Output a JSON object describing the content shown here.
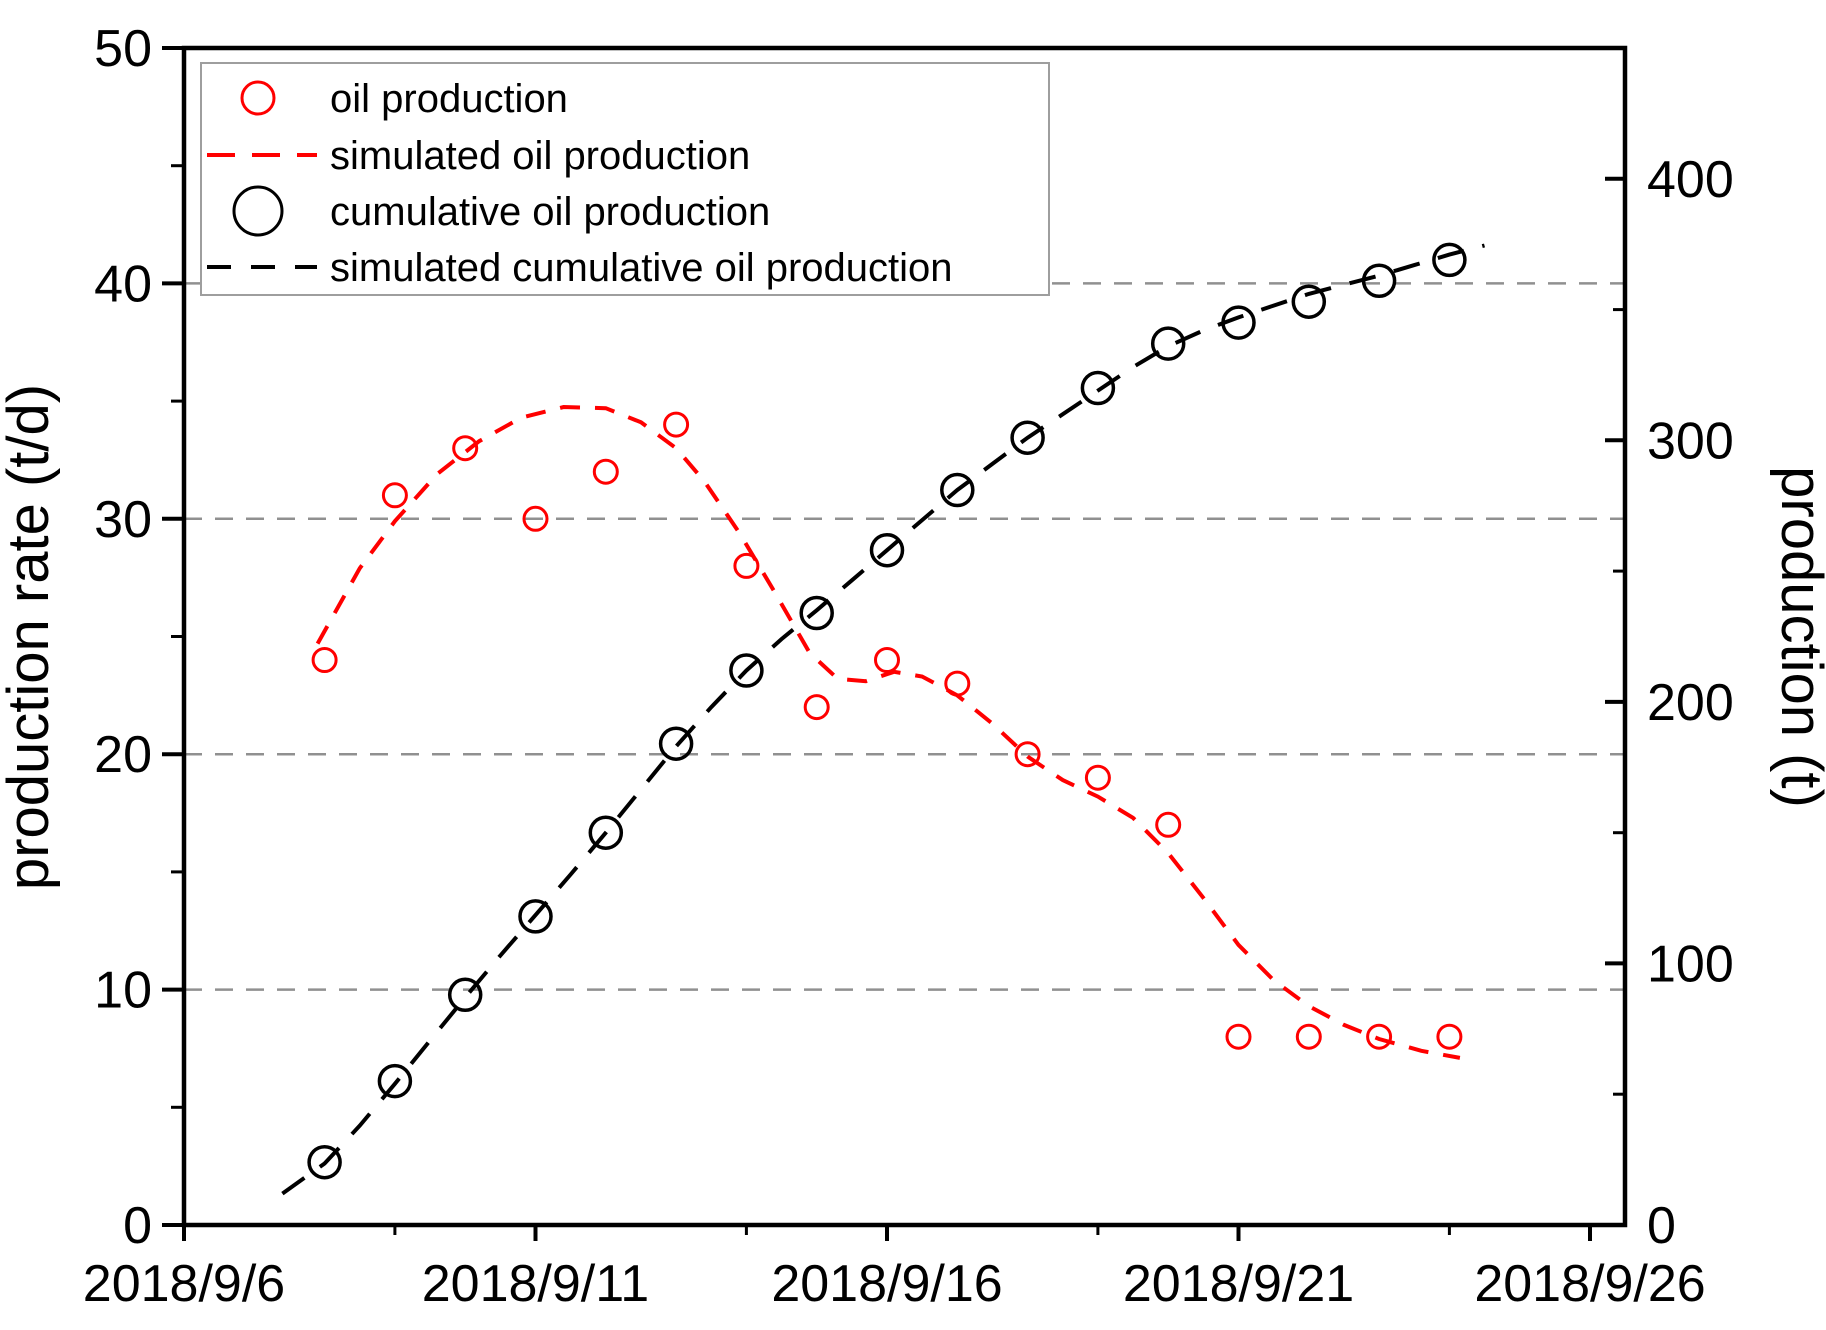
{
  "chart_data": {
    "type": "line",
    "title": "",
    "description": "Dual-axis plot of daily oil production rate and cumulative oil production vs date, with simulated dashed curves",
    "x_axis": {
      "kind": "date",
      "tick_labels": [
        "2018/9/6",
        "2018/9/11",
        "2018/9/16",
        "2018/9/21",
        "2018/9/26"
      ],
      "tick_days": [
        0,
        5,
        10,
        15,
        20
      ],
      "minor_tick_days": [
        3,
        8,
        13,
        18
      ],
      "range_days": [
        0,
        20.5
      ]
    },
    "y_left": {
      "label": "production rate (t/d)",
      "min": 0,
      "max": 50,
      "major_ticks": [
        0,
        10,
        20,
        30,
        40,
        50
      ],
      "minor_ticks": [
        5,
        15,
        25,
        35,
        45
      ],
      "gridlines": [
        10,
        20,
        30,
        40
      ]
    },
    "y_right": {
      "label": "production (t)",
      "min": 0,
      "max": 450,
      "major_ticks": [
        0,
        100,
        200,
        300,
        400
      ],
      "minor_ticks": [
        50,
        150,
        250,
        350,
        450
      ]
    },
    "dates": [
      "2018/9/8",
      "2018/9/9",
      "2018/9/10",
      "2018/9/11",
      "2018/9/12",
      "2018/9/13",
      "2018/9/14",
      "2018/9/15",
      "2018/9/16",
      "2018/9/17",
      "2018/9/18",
      "2018/9/19",
      "2018/9/20",
      "2018/9/21",
      "2018/9/22",
      "2018/9/23",
      "2018/9/24"
    ],
    "days": [
      2,
      3,
      4,
      5,
      6,
      7,
      8,
      9,
      10,
      11,
      12,
      13,
      14,
      15,
      16,
      17,
      18
    ],
    "series": [
      {
        "name": "oil production",
        "type": "scatter",
        "axis": "left",
        "color": "#ff0000",
        "marker": "open-circle",
        "marker_radius": 11.5,
        "values": [
          24,
          31,
          33,
          30,
          32,
          34,
          28,
          22,
          24,
          23,
          20,
          19,
          17,
          8,
          8,
          8,
          8
        ]
      },
      {
        "name": "simulated oil production",
        "type": "dashed-line",
        "axis": "left",
        "color": "#ff0000",
        "dash": "20 15",
        "path": [
          [
            1.9,
            24.7
          ],
          [
            2.5,
            27.9
          ],
          [
            3.0,
            29.9
          ],
          [
            3.6,
            31.9
          ],
          [
            4.2,
            33.3
          ],
          [
            4.8,
            34.3
          ],
          [
            5.4,
            34.75
          ],
          [
            6.0,
            34.7
          ],
          [
            6.5,
            34.1
          ],
          [
            7.0,
            33.0
          ],
          [
            7.4,
            31.6
          ],
          [
            7.9,
            29.4
          ],
          [
            8.4,
            26.9
          ],
          [
            8.9,
            24.3
          ],
          [
            9.3,
            23.2
          ],
          [
            9.7,
            23.1
          ],
          [
            10.1,
            23.5
          ],
          [
            10.5,
            23.3
          ],
          [
            11.0,
            22.5
          ],
          [
            11.5,
            21.3
          ],
          [
            12.0,
            19.9
          ],
          [
            12.5,
            18.9
          ],
          [
            13.0,
            18.2
          ],
          [
            13.5,
            17.3
          ],
          [
            14.0,
            15.8
          ],
          [
            14.5,
            13.9
          ],
          [
            15.0,
            11.9
          ],
          [
            15.5,
            10.4
          ],
          [
            16.0,
            9.3
          ],
          [
            16.5,
            8.5
          ],
          [
            17.0,
            7.9
          ],
          [
            17.6,
            7.4
          ],
          [
            18.15,
            7.1
          ]
        ]
      },
      {
        "name": "cumulative oil production",
        "type": "scatter",
        "axis": "right",
        "color": "#000000",
        "marker": "open-circle",
        "marker_radius": 15.5,
        "values": [
          24,
          55,
          88,
          118,
          150,
          184,
          212,
          234,
          258,
          281,
          301,
          320,
          337,
          345,
          353,
          361,
          369
        ]
      },
      {
        "name": "simulated cumulative oil production",
        "type": "dashed-line",
        "axis": "right",
        "color": "#000000",
        "dash": "27 19",
        "path": [
          [
            1.4,
            12
          ],
          [
            2,
            23.5
          ],
          [
            2.5,
            38
          ],
          [
            3,
            54
          ],
          [
            3.5,
            70.5
          ],
          [
            4,
            87
          ],
          [
            4.5,
            103
          ],
          [
            5,
            118.5
          ],
          [
            5.5,
            134
          ],
          [
            6,
            150
          ],
          [
            6.5,
            166.5
          ],
          [
            7,
            183
          ],
          [
            7.5,
            198
          ],
          [
            8,
            212
          ],
          [
            8.5,
            224
          ],
          [
            9,
            235
          ],
          [
            9.5,
            246.5
          ],
          [
            10,
            258
          ],
          [
            10.5,
            269.5
          ],
          [
            11,
            281
          ],
          [
            11.5,
            291
          ],
          [
            12,
            301
          ],
          [
            12.5,
            310
          ],
          [
            13,
            319
          ],
          [
            13.5,
            328
          ],
          [
            14,
            336
          ],
          [
            14.5,
            342
          ],
          [
            15,
            347
          ],
          [
            15.5,
            351.5
          ],
          [
            16,
            356
          ],
          [
            16.5,
            359.5
          ],
          [
            17,
            363
          ],
          [
            17.5,
            367
          ],
          [
            18,
            371
          ],
          [
            18.5,
            374.5
          ]
        ]
      }
    ],
    "legend": {
      "position": "top-left",
      "border_color": "#9e9e9e"
    },
    "colors": {
      "grid": "#909090",
      "axis": "#000000",
      "background": "#ffffff"
    },
    "grid": {
      "horizontal_dashed": true,
      "vertical": false
    }
  }
}
